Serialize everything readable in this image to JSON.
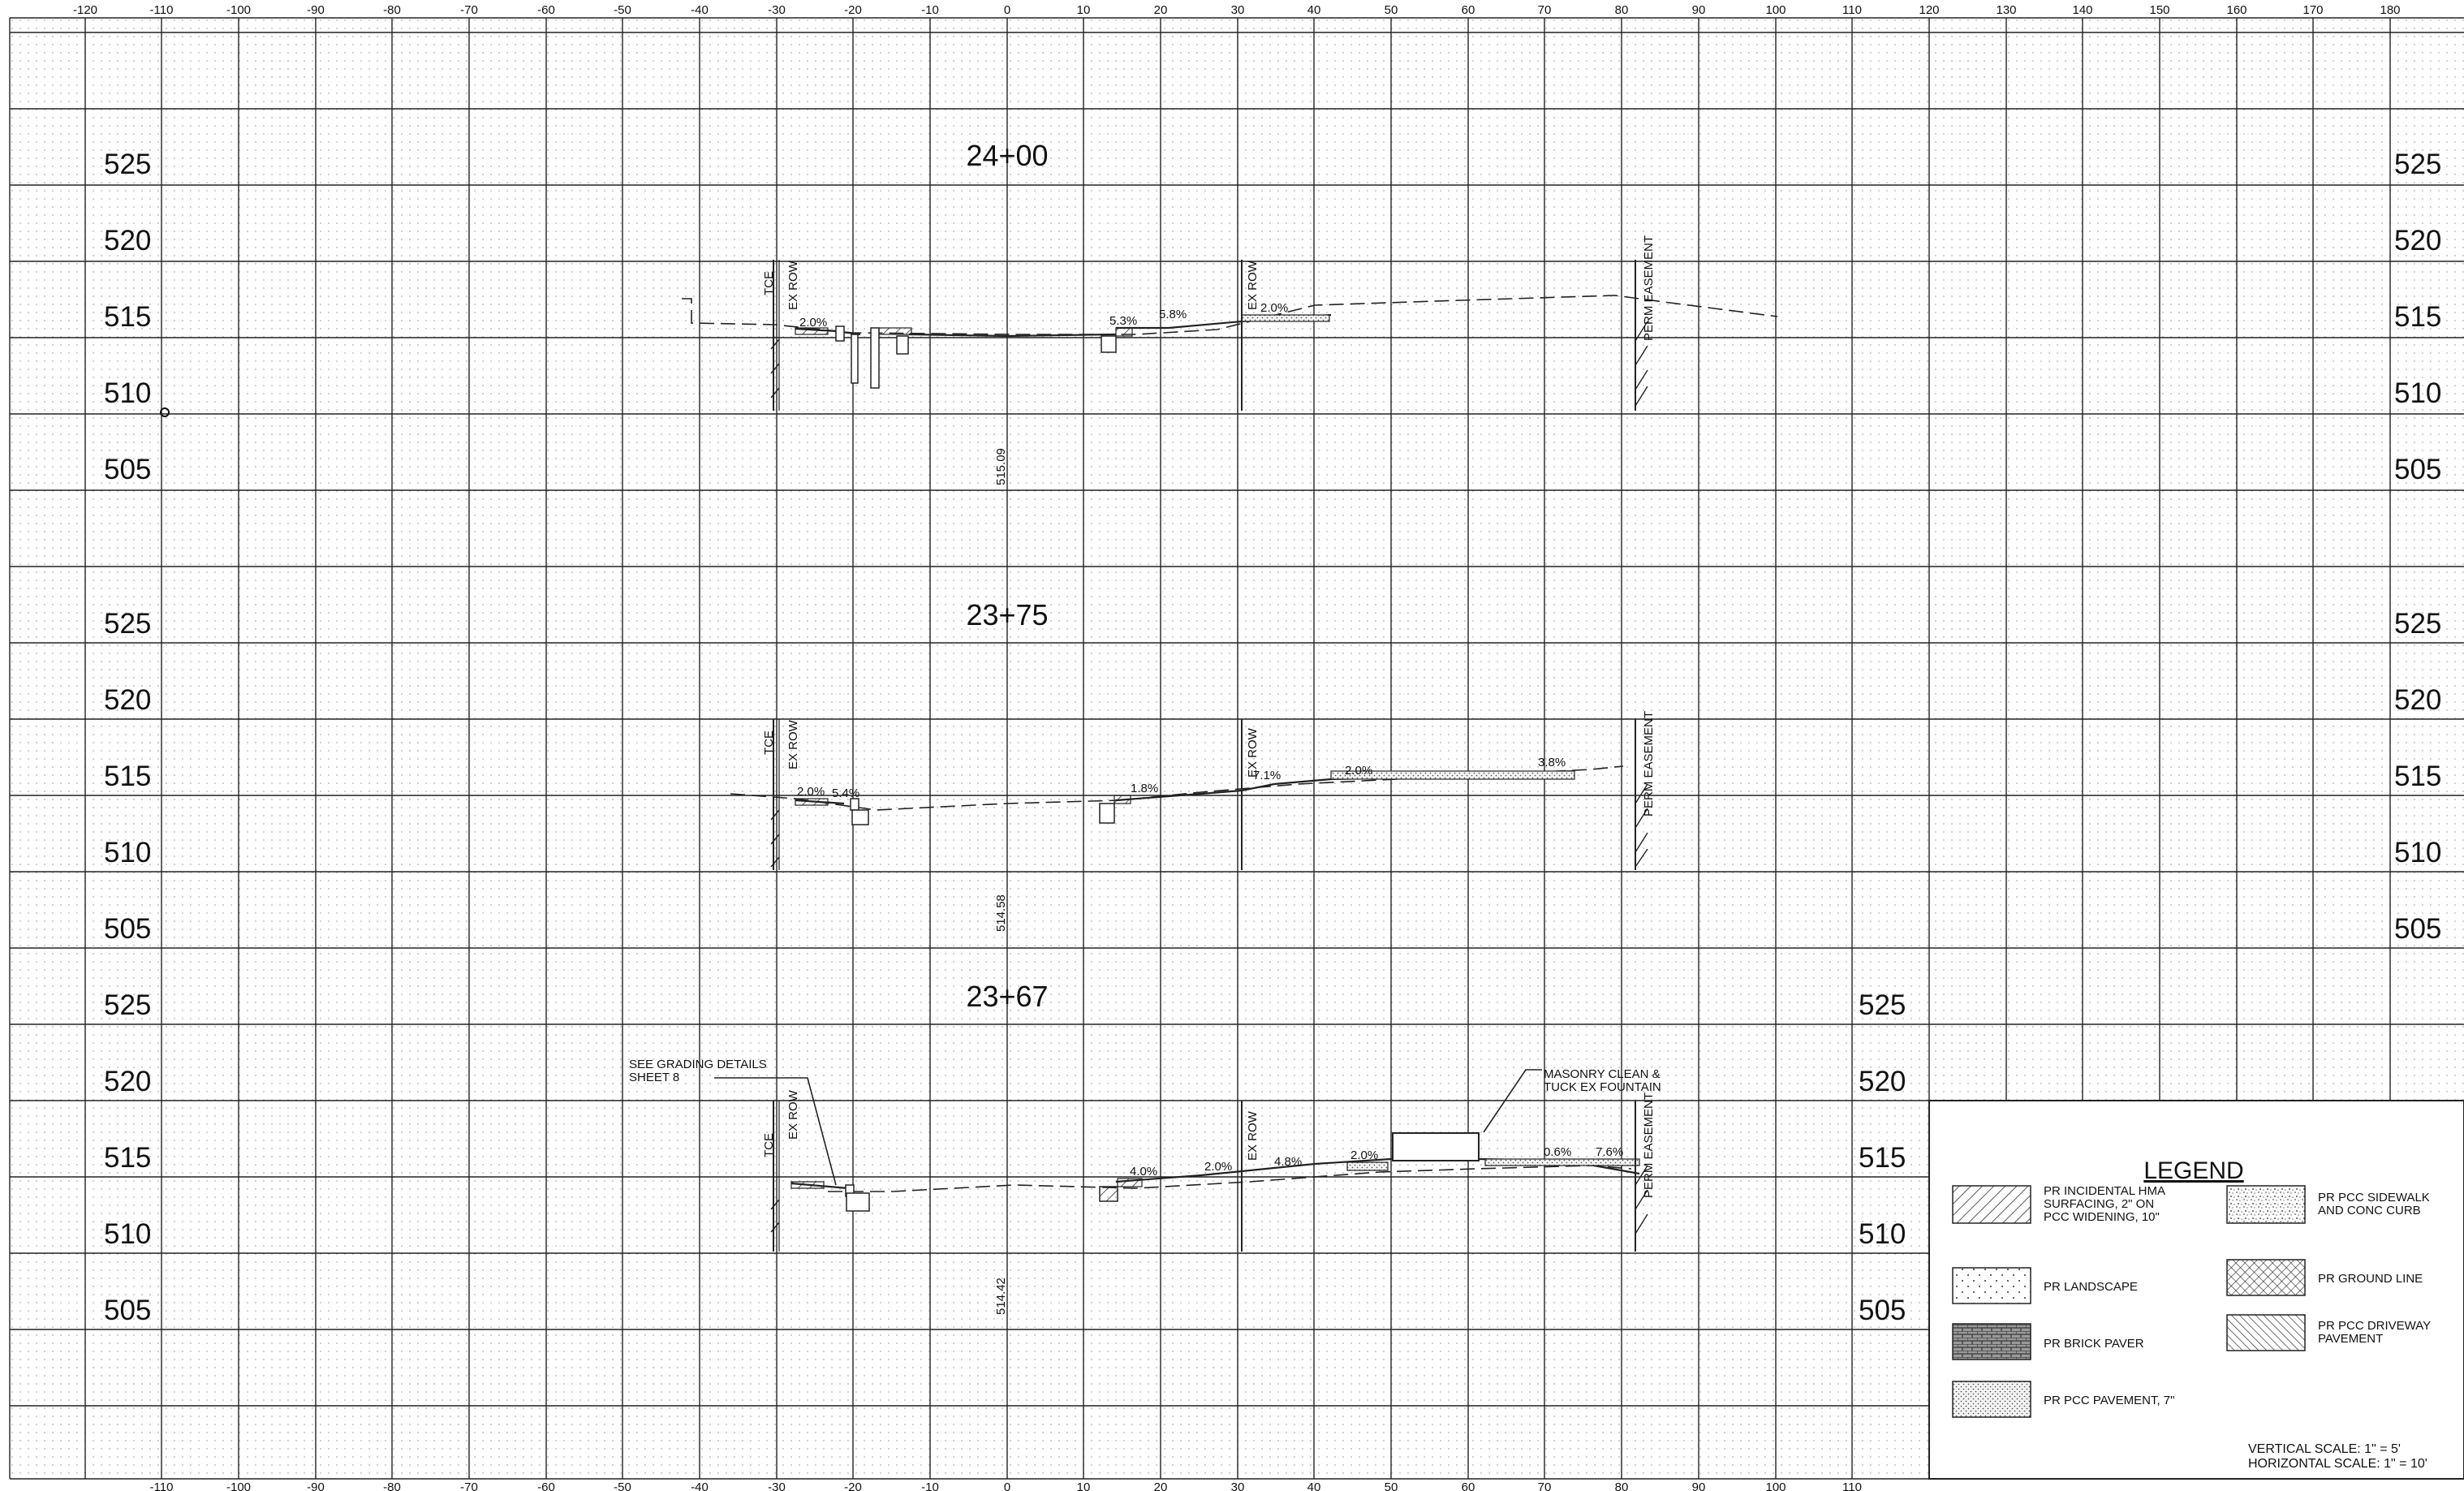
{
  "top_axis_ticks": [
    "-120",
    "-110",
    "-100",
    "-90",
    "-80",
    "-70",
    "-60",
    "-50",
    "-40",
    "-30",
    "-20",
    "-10",
    "0",
    "10",
    "20",
    "30",
    "40",
    "50",
    "60",
    "70",
    "80",
    "90",
    "100",
    "110",
    "120",
    "130",
    "140",
    "150",
    "160",
    "170",
    "180"
  ],
  "bottom_axis_ticks": [
    "-110",
    "-100",
    "-90",
    "-80",
    "-70",
    "-60",
    "-50",
    "-40",
    "-30",
    "-20",
    "-10",
    "0",
    "10",
    "20",
    "30",
    "40",
    "50",
    "60",
    "70",
    "80",
    "90",
    "100",
    "110"
  ],
  "sections": [
    {
      "station": "24+00",
      "elevation_labels": [
        "525",
        "520",
        "515",
        "510",
        "505"
      ],
      "centerline_elevation": "515.09",
      "vertical_labels": [
        "TCE",
        "EX ROW",
        "EX ROW",
        "PERM EASEMENT"
      ],
      "slopes": [
        "2.0%",
        "5.3%",
        "5.8%",
        "2.0%"
      ]
    },
    {
      "station": "23+75",
      "elevation_labels": [
        "525",
        "520",
        "515",
        "510",
        "505"
      ],
      "centerline_elevation": "514.58",
      "vertical_labels": [
        "TCE",
        "EX ROW",
        "EX ROW",
        "PERM EASEMENT"
      ],
      "slopes": [
        "2.0%",
        "5.4%",
        "1.8%",
        "7.1%",
        "2.0%",
        "3.8%"
      ]
    },
    {
      "station": "23+67",
      "elevation_labels": [
        "525",
        "520",
        "515",
        "510",
        "505"
      ],
      "centerline_elevation": "514.42",
      "vertical_labels": [
        "TCE",
        "EX ROW",
        "EX ROW",
        "PERM EASEMENT"
      ],
      "slopes": [
        "4.0%",
        "2.0%",
        "4.8%",
        "2.0%",
        "0.6%",
        "7.6%"
      ],
      "notes": {
        "grading_line1": "SEE GRADING DETAILS",
        "grading_line2": "SHEET 8",
        "masonry_line1": "MASONRY CLEAN &",
        "masonry_line2": "TUCK EX FOUNTAIN"
      }
    }
  ],
  "legend": {
    "title": "LEGEND",
    "items": [
      {
        "pattern": "hatch",
        "lines": [
          "PR INCIDENTAL HMA",
          "SURFACING, 2\" ON",
          "PCC WIDENING, 10\""
        ]
      },
      {
        "pattern": "speckle",
        "lines": [
          "PR PCC SIDEWALK",
          "AND CONC CURB"
        ]
      },
      {
        "pattern": "dots",
        "lines": [
          "PR LANDSCAPE"
        ]
      },
      {
        "pattern": "crosshatch",
        "lines": [
          "PR GROUND LINE"
        ]
      },
      {
        "pattern": "brick",
        "lines": [
          "PR BRICK PAVER"
        ]
      },
      {
        "pattern": "diag",
        "lines": [
          "PR PCC DRIVEWAY",
          "PAVEMENT"
        ]
      },
      {
        "pattern": "stipple",
        "lines": [
          "PR PCC PAVEMENT, 7\""
        ]
      }
    ],
    "vertical_scale": "VERTICAL SCALE: 1\" = 5'",
    "horizontal_scale": "HORIZONTAL SCALE: 1\" = 10'"
  }
}
